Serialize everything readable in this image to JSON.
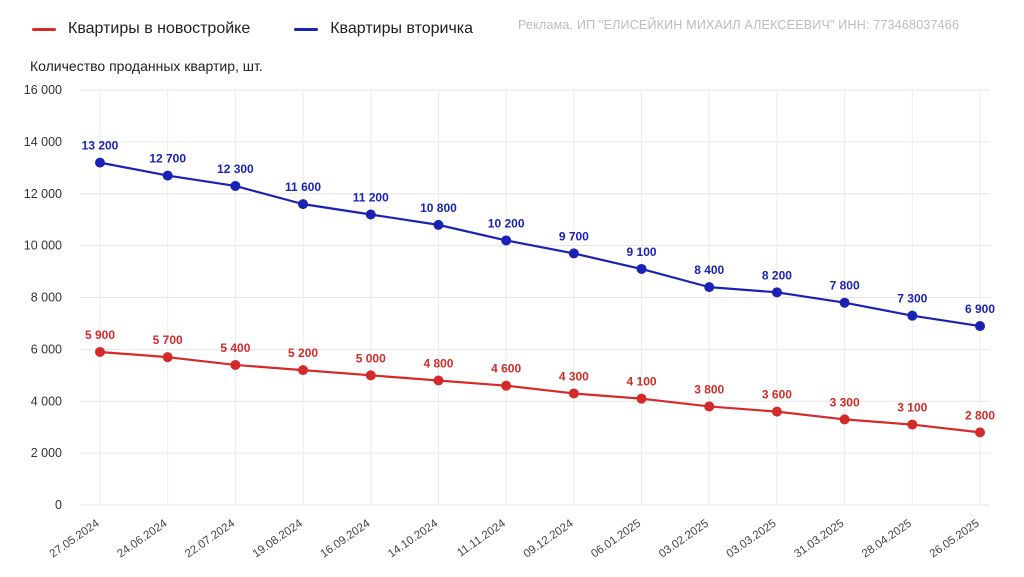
{
  "legend": [
    {
      "label": "Квартиры в новостройке",
      "color": "#d42a2a"
    },
    {
      "label": "Квартиры вторичка",
      "color": "#1a22b5"
    }
  ],
  "ad_text": "Реклама. ИП \"ЕЛИСЕЙКИН МИХАИЛ АЛЕКСЕЕВИЧ\" ИНН: 773468037466",
  "chart_data": {
    "type": "line",
    "title": "",
    "ylabel": "Количество проданных квартир, шт.",
    "xlabel": "",
    "ylim": [
      0,
      16000
    ],
    "yticks": [
      0,
      2000,
      4000,
      6000,
      8000,
      10000,
      12000,
      14000,
      16000
    ],
    "ytick_labels": [
      "0",
      "2 000",
      "4 000",
      "6 000",
      "8 000",
      "10 000",
      "12 000",
      "14 000",
      "16 000"
    ],
    "grid": true,
    "legend_position": "top-left",
    "x": [
      "27.05.2024",
      "24.06.2024",
      "22.07.2024",
      "19.08.2024",
      "16.09.2024",
      "14.10.2024",
      "11.11.2024",
      "09.12.2024",
      "06.01.2025",
      "03.02.2025",
      "03.03.2025",
      "31.03.2025",
      "28.04.2025",
      "26.05.2025"
    ],
    "series": [
      {
        "name": "Квартиры в новостройке",
        "color": "#d42a2a",
        "values": [
          5900,
          5700,
          5400,
          5200,
          5000,
          4800,
          4600,
          4300,
          4100,
          3800,
          3600,
          3300,
          3100,
          2800
        ],
        "labels": [
          "5 900",
          "5 700",
          "5 400",
          "5 200",
          "5 000",
          "4 800",
          "4 600",
          "4 300",
          "4 100",
          "3 800",
          "3 600",
          "3 300",
          "3 100",
          "2 800"
        ]
      },
      {
        "name": "Квартиры вторичка",
        "color": "#1a22b5",
        "values": [
          13200,
          12700,
          12300,
          11600,
          11200,
          10800,
          10200,
          9700,
          9100,
          8400,
          8200,
          7800,
          7300,
          6900
        ],
        "labels": [
          "13 200",
          "12 700",
          "12 300",
          "11 600",
          "11 200",
          "10 800",
          "10 200",
          "9 700",
          "9 100",
          "8 400",
          "8 200",
          "7 800",
          "7 300",
          "6 900"
        ]
      }
    ]
  }
}
